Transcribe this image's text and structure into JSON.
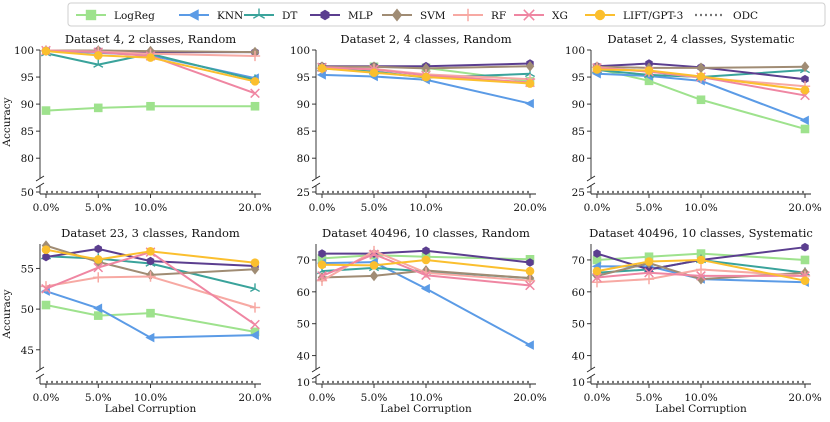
{
  "chart_data": [
    {
      "type": "line",
      "title": "Dataset 4, 2 classes, Random",
      "xlabel": "",
      "ylabel": "Accuracy",
      "x": [
        "0.0%",
        "5.0%",
        "10.0%",
        "20.0%"
      ],
      "x_values": [
        0,
        5,
        10,
        20
      ],
      "ylim_main": [
        78,
        100
      ],
      "yticks_main": [
        80,
        85,
        90,
        95,
        100
      ],
      "baseline": {
        "name": "ODC",
        "value": 50,
        "tick": 50
      },
      "series": [
        {
          "name": "LogReg",
          "values": [
            88.8,
            89.3,
            89.6,
            89.6
          ]
        },
        {
          "name": "KNN",
          "values": [
            99.8,
            99.5,
            99.0,
            94.8
          ]
        },
        {
          "name": "DT",
          "values": [
            99.4,
            97.3,
            99.3,
            94.5
          ]
        },
        {
          "name": "MLP",
          "values": [
            99.9,
            99.9,
            99.6,
            99.6
          ]
        },
        {
          "name": "SVM",
          "values": [
            99.9,
            99.9,
            99.8,
            99.6
          ]
        },
        {
          "name": "RF",
          "values": [
            99.9,
            99.7,
            99.3,
            98.9
          ]
        },
        {
          "name": "XG",
          "values": [
            99.9,
            99.6,
            98.9,
            92.0
          ]
        },
        {
          "name": "LIFT/GPT-3",
          "values": [
            99.8,
            99.0,
            98.6,
            94.2
          ]
        }
      ]
    },
    {
      "type": "line",
      "title": "Dataset 2, 4 classes, Random",
      "xlabel": "",
      "ylabel": "",
      "x": [
        "0.0%",
        "5.0%",
        "10.0%",
        "20.0%"
      ],
      "x_values": [
        0,
        5,
        10,
        20
      ],
      "ylim_main": [
        78,
        100
      ],
      "yticks_main": [
        80,
        85,
        90,
        95,
        100
      ],
      "baseline": {
        "name": "ODC",
        "value": 25,
        "tick": 25
      },
      "series": [
        {
          "name": "LogReg",
          "values": [
            96.8,
            96.9,
            96.7,
            94.2
          ]
        },
        {
          "name": "KNN",
          "values": [
            95.4,
            95.1,
            94.5,
            90.1
          ]
        },
        {
          "name": "DT",
          "values": [
            96.6,
            96.0,
            94.9,
            95.6
          ]
        },
        {
          "name": "MLP",
          "values": [
            97.0,
            97.0,
            97.0,
            97.5
          ]
        },
        {
          "name": "SVM",
          "values": [
            96.9,
            96.9,
            96.6,
            97.0
          ]
        },
        {
          "name": "RF",
          "values": [
            96.6,
            96.5,
            95.5,
            94.6
          ]
        },
        {
          "name": "XG",
          "values": [
            96.8,
            96.4,
            95.3,
            94.0
          ]
        },
        {
          "name": "LIFT/GPT-3",
          "values": [
            96.6,
            95.8,
            95.0,
            93.8
          ]
        }
      ]
    },
    {
      "type": "line",
      "title": "Dataset 2, 4 classes, Systematic",
      "xlabel": "",
      "ylabel": "",
      "x": [
        "0.0%",
        "5.0%",
        "10.0%",
        "20.0%"
      ],
      "x_values": [
        0,
        5,
        10,
        20
      ],
      "ylim_main": [
        78,
        100
      ],
      "yticks_main": [
        80,
        85,
        90,
        95,
        100
      ],
      "baseline": {
        "name": "ODC",
        "value": 25,
        "tick": 25
      },
      "series": [
        {
          "name": "LogReg",
          "values": [
            96.5,
            94.3,
            90.8,
            85.4
          ]
        },
        {
          "name": "KNN",
          "values": [
            95.6,
            95.2,
            94.3,
            87.0
          ]
        },
        {
          "name": "DT",
          "values": [
            96.3,
            95.4,
            95.0,
            96.3
          ]
        },
        {
          "name": "MLP",
          "values": [
            97.0,
            97.5,
            96.8,
            94.6
          ]
        },
        {
          "name": "SVM",
          "values": [
            96.9,
            96.7,
            96.7,
            96.9
          ]
        },
        {
          "name": "RF",
          "values": [
            96.8,
            96.0,
            94.9,
            93.3
          ]
        },
        {
          "name": "XG",
          "values": [
            96.7,
            96.0,
            95.0,
            91.6
          ]
        },
        {
          "name": "LIFT/GPT-3",
          "values": [
            96.4,
            96.2,
            95.1,
            92.6
          ]
        }
      ]
    },
    {
      "type": "line",
      "title": "Dataset 23, 3 classes, Random",
      "xlabel": "Label Corruption",
      "ylabel": "Accuracy",
      "x": [
        "0.0%",
        "5.0%",
        "10.0%",
        "20.0%"
      ],
      "x_values": [
        0,
        5,
        10,
        20
      ],
      "ylim_main": [
        43.5,
        58
      ],
      "yticks_main": [
        45,
        50,
        55
      ],
      "baseline": {
        "name": "ODC",
        "value": 42.7,
        "tick": null
      },
      "series": [
        {
          "name": "LogReg",
          "values": [
            50.5,
            49.2,
            49.5,
            47.2
          ]
        },
        {
          "name": "KNN",
          "values": [
            52.2,
            50.1,
            46.5,
            46.8
          ]
        },
        {
          "name": "DT",
          "values": [
            56.5,
            56.2,
            55.6,
            52.5
          ]
        },
        {
          "name": "MLP",
          "values": [
            56.4,
            57.4,
            55.9,
            55.3
          ]
        },
        {
          "name": "SVM",
          "values": [
            57.8,
            55.8,
            54.2,
            54.9
          ]
        },
        {
          "name": "RF",
          "values": [
            52.8,
            53.9,
            54.0,
            50.2
          ]
        },
        {
          "name": "XG",
          "values": [
            52.5,
            55.1,
            57.0,
            48.1
          ]
        },
        {
          "name": "LIFT/GPT-3",
          "values": [
            57.3,
            56.1,
            57.1,
            55.7
          ]
        }
      ]
    },
    {
      "type": "line",
      "title": "Dataset 40496, 10 classes, Random",
      "xlabel": "Label Corruption",
      "ylabel": "",
      "x": [
        "0.0%",
        "5.0%",
        "10.0%",
        "20.0%"
      ],
      "x_values": [
        0,
        5,
        10,
        20
      ],
      "ylim_main": [
        38,
        75
      ],
      "yticks_main": [
        40,
        50,
        60,
        70
      ],
      "baseline": {
        "name": "ODC",
        "value": 12,
        "tick": 10
      },
      "series": [
        {
          "name": "LogReg",
          "values": [
            70.5,
            71.5,
            71.0,
            70.2
          ]
        },
        {
          "name": "KNN",
          "values": [
            69.0,
            69.3,
            61.0,
            43.3
          ]
        },
        {
          "name": "DT",
          "values": [
            66.5,
            67.5,
            66.4,
            64.3
          ]
        },
        {
          "name": "MLP",
          "values": [
            72.0,
            72.0,
            72.9,
            69.2
          ]
        },
        {
          "name": "SVM",
          "values": [
            64.5,
            65.0,
            66.7,
            64.3
          ]
        },
        {
          "name": "RF",
          "values": [
            63.5,
            72.8,
            66.0,
            63.5
          ]
        },
        {
          "name": "XG",
          "values": [
            65.0,
            71.8,
            65.2,
            62.0
          ]
        },
        {
          "name": "LIFT/GPT-3",
          "values": [
            68.5,
            68.3,
            70.0,
            66.5
          ]
        }
      ]
    },
    {
      "type": "line",
      "title": "Dataset 40496, 10 classes, Systematic",
      "xlabel": "Label Corruption",
      "ylabel": "",
      "x": [
        "0.0%",
        "5.0%",
        "10.0%",
        "20.0%"
      ],
      "x_values": [
        0,
        5,
        10,
        20
      ],
      "ylim_main": [
        38,
        75
      ],
      "yticks_main": [
        40,
        50,
        60,
        70
      ],
      "baseline": {
        "name": "ODC",
        "value": 12,
        "tick": 10
      },
      "series": [
        {
          "name": "LogReg",
          "values": [
            70.0,
            71.0,
            72.0,
            70.0
          ]
        },
        {
          "name": "KNN",
          "values": [
            68.0,
            68.0,
            64.0,
            63.0
          ]
        },
        {
          "name": "DT",
          "values": [
            66.0,
            67.0,
            70.0,
            66.0
          ]
        },
        {
          "name": "MLP",
          "values": [
            72.0,
            67.0,
            70.0,
            74.0
          ]
        },
        {
          "name": "SVM",
          "values": [
            65.0,
            69.0,
            64.0,
            66.0
          ]
        },
        {
          "name": "RF",
          "values": [
            63.0,
            64.0,
            67.0,
            65.0
          ]
        },
        {
          "name": "XG",
          "values": [
            64.5,
            66.0,
            65.0,
            65.0
          ]
        },
        {
          "name": "LIFT/GPT-3",
          "values": [
            66.5,
            69.5,
            70.0,
            63.5
          ]
        }
      ]
    }
  ],
  "legend": {
    "placement": "top-center",
    "items": [
      {
        "name": "LogReg",
        "color": "#9ee28d",
        "marker": "square",
        "style": "solid"
      },
      {
        "name": "KNN",
        "color": "#5b9be6",
        "marker": "triangle-left",
        "style": "solid"
      },
      {
        "name": "DT",
        "color": "#3aa39b",
        "marker": "tri-y",
        "style": "solid"
      },
      {
        "name": "MLP",
        "color": "#5b3e8f",
        "marker": "hexagon",
        "style": "solid"
      },
      {
        "name": "SVM",
        "color": "#a08c74",
        "marker": "diamond",
        "style": "solid"
      },
      {
        "name": "RF",
        "color": "#f7a9a3",
        "marker": "plus",
        "style": "solid"
      },
      {
        "name": "XG",
        "color": "#ef86a2",
        "marker": "x",
        "style": "solid"
      },
      {
        "name": "LIFT/GPT-3",
        "color": "#fbbf2e",
        "marker": "circle",
        "style": "solid"
      },
      {
        "name": "ODC",
        "color": "#777777",
        "marker": "none",
        "style": "dotted"
      }
    ]
  }
}
